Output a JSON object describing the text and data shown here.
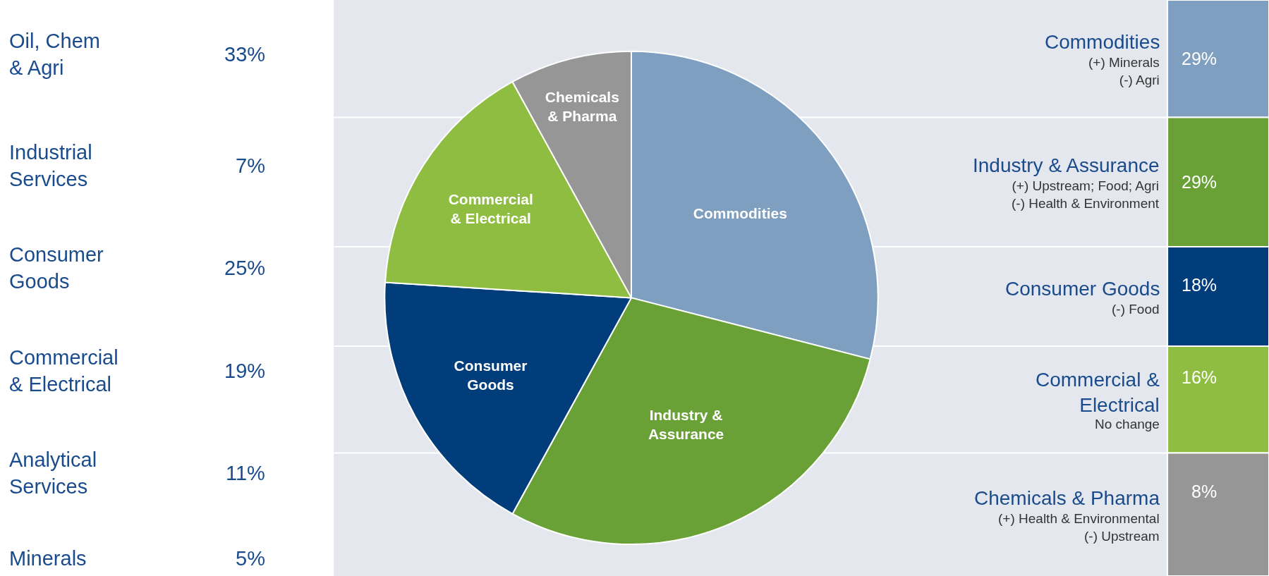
{
  "chart_data": [
    {
      "type": "other",
      "annotations": [
        "Oil, Chem\n& Agri",
        "33%",
        "Industrial\nServices",
        "7%",
        "Consumer\nGoods",
        "25%",
        "Commercial\n& Electrical",
        "19%",
        "Analytical\nServices",
        "11%",
        "Minerals",
        "5%"
      ]
    },
    {
      "type": "pie",
      "categories": [
        "Commodities",
        "Industry &\nAssurance",
        "Consumer\nGoods",
        "Commercial\n& Electrical",
        "Chemicals\n& Pharma"
      ],
      "values": [
        29,
        29,
        18,
        16,
        8
      ],
      "colors": [
        "#7f9fc0",
        "#69a136",
        "#003d7a",
        "#8fbd42",
        "#969696"
      ],
      "annotations": [
        "Commodities",
        "(+) Minerals\n(-) Agri",
        "29%",
        "Industry & Assurance",
        "(+) Upstream; Food; Agri\n(-) Health & Environment",
        "29%",
        "Consumer Goods",
        "(-) Food",
        "18%",
        "Commercial &\nElectrical",
        "No change",
        "16%",
        "Chemicals & Pharma",
        "(+) Health & Environmental\n(-) Upstream",
        "8%"
      ]
    }
  ]
}
